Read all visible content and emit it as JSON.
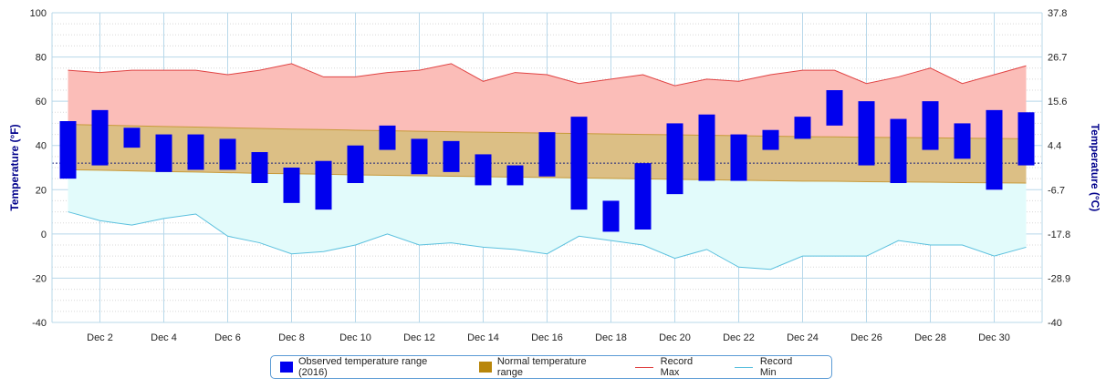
{
  "chart_data": {
    "type": "bar",
    "x_labels": [
      "Dec 2",
      "Dec 4",
      "Dec 6",
      "Dec 8",
      "Dec 10",
      "Dec 12",
      "Dec 14",
      "Dec 16",
      "Dec 18",
      "Dec 20",
      "Dec 22",
      "Dec 24",
      "Dec 26",
      "Dec 28",
      "Dec 30"
    ],
    "days": [
      1,
      2,
      3,
      4,
      5,
      6,
      7,
      8,
      9,
      10,
      11,
      12,
      13,
      14,
      15,
      16,
      17,
      18,
      19,
      20,
      21,
      22,
      23,
      24,
      25,
      26,
      27,
      28,
      29,
      30,
      31
    ],
    "y_left": {
      "label": "Temperature (°F)",
      "min": -40,
      "max": 100,
      "ticks": [
        100,
        80,
        60,
        40,
        20,
        0,
        -20,
        -40
      ]
    },
    "y_right": {
      "label": "Temperature (°C)",
      "ticks": [
        "37.8",
        "26.7",
        "15.6",
        "4.4",
        "-6.7",
        "-17.8",
        "-28.9",
        "-40"
      ]
    },
    "reference_line_f": 32,
    "series": [
      {
        "name": "Observed temperature range (2016)",
        "color": "#0000ee",
        "low": [
          25,
          31,
          39,
          28,
          29,
          29,
          23,
          14,
          11,
          23,
          38,
          27,
          28,
          22,
          22,
          26,
          11,
          1,
          2,
          18,
          24,
          24,
          38,
          43,
          49,
          31,
          23,
          38,
          34,
          20,
          31
        ],
        "high": [
          51,
          56,
          48,
          45,
          45,
          43,
          37,
          30,
          33,
          40,
          49,
          43,
          42,
          36,
          31,
          46,
          53,
          15,
          32,
          50,
          54,
          45,
          47,
          53,
          65,
          60,
          52,
          60,
          50,
          56,
          55
        ]
      },
      {
        "name": "Normal temperature range",
        "color": "#b8860b",
        "low": [
          29,
          28.8,
          28.5,
          28.2,
          28,
          27.7,
          27.4,
          27.2,
          27,
          26.7,
          26.5,
          26.3,
          26.1,
          25.9,
          25.7,
          25.5,
          25.3,
          25.1,
          24.9,
          24.7,
          24.5,
          24.3,
          24.1,
          23.9,
          23.8,
          23.6,
          23.5,
          23.4,
          23.2,
          23.1,
          23
        ],
        "high": [
          49.5,
          49.2,
          48.9,
          48.6,
          48.3,
          48,
          47.7,
          47.4,
          47.2,
          46.9,
          46.7,
          46.4,
          46.2,
          46,
          45.8,
          45.6,
          45.4,
          45.2,
          45,
          44.8,
          44.6,
          44.4,
          44.2,
          44,
          43.9,
          43.7,
          43.6,
          43.5,
          43.3,
          43.2,
          43
        ]
      },
      {
        "name": "Record Max",
        "color": "#e04343",
        "values": [
          74,
          73,
          74,
          74,
          74,
          72,
          74,
          77,
          71,
          71,
          73,
          74,
          77,
          69,
          73,
          72,
          68,
          70,
          72,
          67,
          70,
          69,
          72,
          74,
          74,
          68,
          71,
          75,
          68,
          72,
          76
        ]
      },
      {
        "name": "Record Min",
        "color": "#5bc0de",
        "values": [
          10,
          6,
          4,
          7,
          9,
          -1,
          -4,
          -9,
          -8,
          -5,
          0,
          -5,
          -4,
          -6,
          -7,
          -9,
          -1,
          -3,
          -5,
          -11,
          -7,
          -15,
          -16,
          -10,
          -10,
          -10,
          -3,
          -5,
          -5,
          -10,
          -6
        ]
      }
    ],
    "grid": true,
    "legend_position": "bottom"
  }
}
